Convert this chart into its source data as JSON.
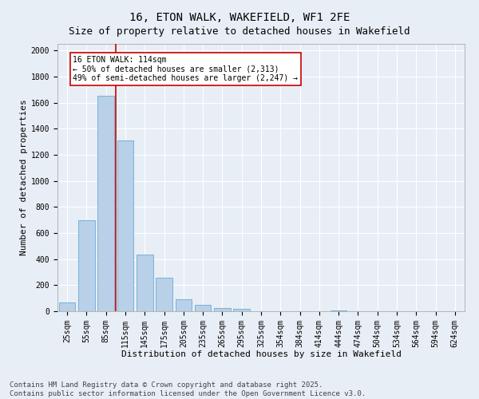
{
  "title": "16, ETON WALK, WAKEFIELD, WF1 2FE",
  "subtitle": "Size of property relative to detached houses in Wakefield",
  "xlabel": "Distribution of detached houses by size in Wakefield",
  "ylabel": "Number of detached properties",
  "categories": [
    "25sqm",
    "55sqm",
    "85sqm",
    "115sqm",
    "145sqm",
    "175sqm",
    "205sqm",
    "235sqm",
    "265sqm",
    "295sqm",
    "325sqm",
    "354sqm",
    "384sqm",
    "414sqm",
    "444sqm",
    "474sqm",
    "504sqm",
    "534sqm",
    "564sqm",
    "594sqm",
    "624sqm"
  ],
  "values": [
    65,
    700,
    1650,
    1310,
    435,
    255,
    90,
    50,
    25,
    20,
    0,
    0,
    0,
    0,
    5,
    0,
    0,
    0,
    0,
    0,
    0
  ],
  "bar_color": "#b8d0e8",
  "bar_edgecolor": "#6aaad4",
  "bar_linewidth": 0.6,
  "ylim": [
    0,
    2050
  ],
  "yticks": [
    0,
    200,
    400,
    600,
    800,
    1000,
    1200,
    1400,
    1600,
    1800,
    2000
  ],
  "vline_color": "#cc0000",
  "vline_linewidth": 1.2,
  "annotation_text": "16 ETON WALK: 114sqm\n← 50% of detached houses are smaller (2,313)\n49% of semi-detached houses are larger (2,247) →",
  "annotation_box_color": "#ffffff",
  "annotation_box_edgecolor": "#cc0000",
  "footer_line1": "Contains HM Land Registry data © Crown copyright and database right 2025.",
  "footer_line2": "Contains public sector information licensed under the Open Government Licence v3.0.",
  "background_color": "#e8eef5",
  "grid_color": "#ffffff",
  "title_fontsize": 10,
  "subtitle_fontsize": 9,
  "xlabel_fontsize": 8,
  "ylabel_fontsize": 8,
  "tick_fontsize": 7,
  "footer_fontsize": 6.5,
  "annotation_fontsize": 7
}
